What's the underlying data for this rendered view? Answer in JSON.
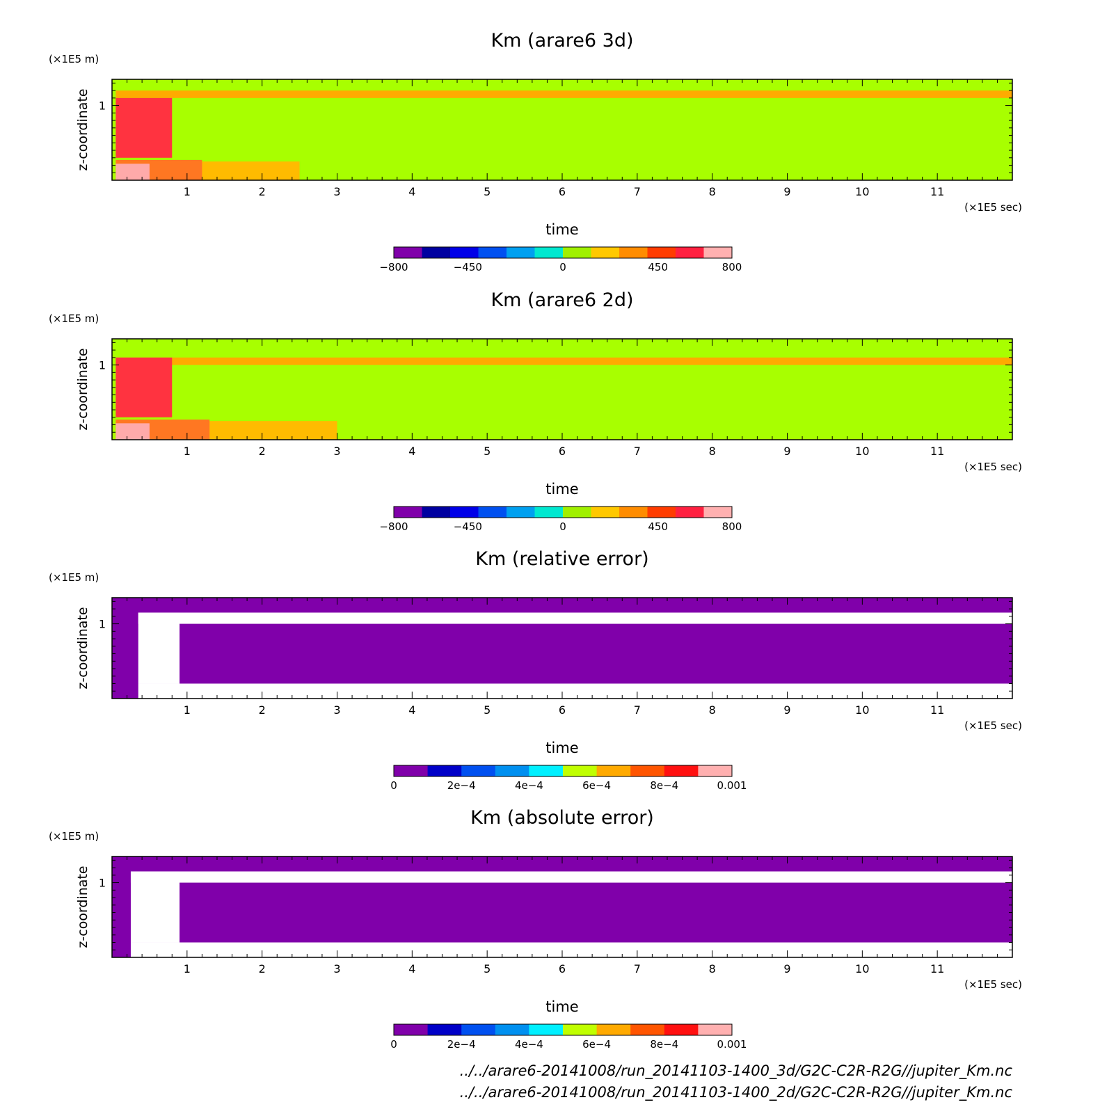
{
  "chart_data": [
    {
      "type": "heatmap",
      "title": "Km (arare6 3d)",
      "xlabel": "time",
      "ylabel": "z-coordinate",
      "x_unit": "(×1E5 sec)",
      "y_unit": "(×1E5 m)",
      "x_ticks": [
        "1",
        "2",
        "3",
        "4",
        "5",
        "6",
        "7",
        "8",
        "9",
        "10",
        "11"
      ],
      "y_ticks": [
        "1"
      ],
      "xlim": [
        0,
        12
      ],
      "ylim": [
        0,
        1.35
      ],
      "colorbar": {
        "ticks": [
          "−800",
          "−450",
          "0",
          "450",
          "800"
        ],
        "tick_values": [
          -800,
          -450,
          0,
          450,
          800
        ],
        "range": [
          -800,
          800
        ],
        "colors": [
          "#8000aa",
          "#0000a0",
          "#0000e8",
          "#0050f0",
          "#00a0f0",
          "#00e8d0",
          "#a0f000",
          "#ffc800",
          "#ff8c00",
          "#ff3c00",
          "#ff2040",
          "#ffb0b0"
        ]
      },
      "regions": [
        {
          "x": [
            0,
            12
          ],
          "y": [
            0,
            1.35
          ],
          "color": "#a8ff00"
        },
        {
          "x": [
            0.05,
            12
          ],
          "y": [
            1.1,
            1.2
          ],
          "color": "#ffaa00"
        },
        {
          "x": [
            0.05,
            2.5
          ],
          "y": [
            0,
            0.25
          ],
          "color": "#ffbb00"
        },
        {
          "x": [
            0.05,
            1.2
          ],
          "y": [
            0,
            0.27
          ],
          "color": "#ff7722"
        },
        {
          "x": [
            0.05,
            0.8
          ],
          "y": [
            0.3,
            1.1
          ],
          "color": "#ff3340"
        },
        {
          "x": [
            0.05,
            0.5
          ],
          "y": [
            0,
            0.22
          ],
          "color": "#ffaaaa"
        }
      ]
    },
    {
      "type": "heatmap",
      "title": "Km (arare6 2d)",
      "xlabel": "time",
      "ylabel": "z-coordinate",
      "x_unit": "(×1E5 sec)",
      "y_unit": "(×1E5 m)",
      "x_ticks": [
        "1",
        "2",
        "3",
        "4",
        "5",
        "6",
        "7",
        "8",
        "9",
        "10",
        "11"
      ],
      "y_ticks": [
        "1"
      ],
      "xlim": [
        0,
        12
      ],
      "ylim": [
        0,
        1.35
      ],
      "colorbar": {
        "ticks": [
          "−800",
          "−450",
          "0",
          "450",
          "800"
        ],
        "tick_values": [
          -800,
          -450,
          0,
          450,
          800
        ],
        "range": [
          -800,
          800
        ],
        "colors": [
          "#8000aa",
          "#0000a0",
          "#0000e8",
          "#0050f0",
          "#00a0f0",
          "#00e8d0",
          "#a0f000",
          "#ffc800",
          "#ff8c00",
          "#ff3c00",
          "#ff2040",
          "#ffb0b0"
        ]
      },
      "regions": [
        {
          "x": [
            0,
            12
          ],
          "y": [
            0,
            1.35
          ],
          "color": "#a8ff00"
        },
        {
          "x": [
            0.05,
            12
          ],
          "y": [
            1.0,
            1.1
          ],
          "color": "#ffaa00"
        },
        {
          "x": [
            0.05,
            3.0
          ],
          "y": [
            0,
            0.25
          ],
          "color": "#ffbb00"
        },
        {
          "x": [
            0.05,
            1.3
          ],
          "y": [
            0,
            0.27
          ],
          "color": "#ff7722"
        },
        {
          "x": [
            0.05,
            0.8
          ],
          "y": [
            0.3,
            1.1
          ],
          "color": "#ff3340"
        },
        {
          "x": [
            0.05,
            0.5
          ],
          "y": [
            0,
            0.22
          ],
          "color": "#ffaaaa"
        }
      ]
    },
    {
      "type": "heatmap",
      "title": "Km (relative error)",
      "xlabel": "time",
      "ylabel": "z-coordinate",
      "x_unit": "(×1E5 sec)",
      "y_unit": "(×1E5 m)",
      "x_ticks": [
        "1",
        "2",
        "3",
        "4",
        "5",
        "6",
        "7",
        "8",
        "9",
        "10",
        "11"
      ],
      "y_ticks": [
        "1"
      ],
      "xlim": [
        0,
        12
      ],
      "ylim": [
        0,
        1.35
      ],
      "colorbar": {
        "ticks": [
          "0",
          "2e−4",
          "4e−4",
          "6e−4",
          "8e−4",
          "0.001"
        ],
        "tick_values": [
          0,
          0.0002,
          0.0004,
          0.0006,
          0.0008,
          0.001
        ],
        "range": [
          0,
          0.001
        ],
        "colors": [
          "#8000aa",
          "#0000c8",
          "#0050f0",
          "#0090f0",
          "#00f0ff",
          "#c0ff00",
          "#ffaa00",
          "#ff5500",
          "#ff1010",
          "#ffb0b0"
        ]
      },
      "regions": [
        {
          "x": [
            0,
            12
          ],
          "y": [
            0,
            1.35
          ],
          "color": "#8000aa"
        },
        {
          "x": [
            0.35,
            12
          ],
          "y": [
            1.0,
            1.15
          ],
          "color": "#ffffff"
        },
        {
          "x": [
            0.35,
            12
          ],
          "y": [
            0,
            0.2
          ],
          "color": "#ffffff"
        },
        {
          "x": [
            0.35,
            0.9
          ],
          "y": [
            0.2,
            1.15
          ],
          "color": "#ffffff"
        }
      ]
    },
    {
      "type": "heatmap",
      "title": "Km (absolute error)",
      "xlabel": "time",
      "ylabel": "z-coordinate",
      "x_unit": "(×1E5 sec)",
      "y_unit": "(×1E5 m)",
      "x_ticks": [
        "1",
        "2",
        "3",
        "4",
        "5",
        "6",
        "7",
        "8",
        "9",
        "10",
        "11"
      ],
      "y_ticks": [
        "1"
      ],
      "xlim": [
        0,
        12
      ],
      "ylim": [
        0,
        1.35
      ],
      "colorbar": {
        "ticks": [
          "0",
          "2e−4",
          "4e−4",
          "6e−4",
          "8e−4",
          "0.001"
        ],
        "tick_values": [
          0,
          0.0002,
          0.0004,
          0.0006,
          0.0008,
          0.001
        ],
        "range": [
          0,
          0.001
        ],
        "colors": [
          "#8000aa",
          "#0000c8",
          "#0050f0",
          "#0090f0",
          "#00f0ff",
          "#c0ff00",
          "#ffaa00",
          "#ff5500",
          "#ff1010",
          "#ffb0b0"
        ]
      },
      "regions": [
        {
          "x": [
            0,
            12
          ],
          "y": [
            0,
            1.35
          ],
          "color": "#8000aa"
        },
        {
          "x": [
            0.25,
            12
          ],
          "y": [
            1.0,
            1.15
          ],
          "color": "#ffffff"
        },
        {
          "x": [
            0.25,
            12
          ],
          "y": [
            0,
            0.2
          ],
          "color": "#ffffff"
        },
        {
          "x": [
            0.25,
            0.9
          ],
          "y": [
            0.2,
            1.15
          ],
          "color": "#ffffff"
        }
      ]
    }
  ],
  "footer": {
    "lines": [
      "../../arare6-20141008/run_20141103-1400_3d/G2C-C2R-R2G//jupiter_Km.nc",
      "../../arare6-20141008/run_20141103-1400_2d/G2C-C2R-R2G//jupiter_Km.nc"
    ]
  }
}
